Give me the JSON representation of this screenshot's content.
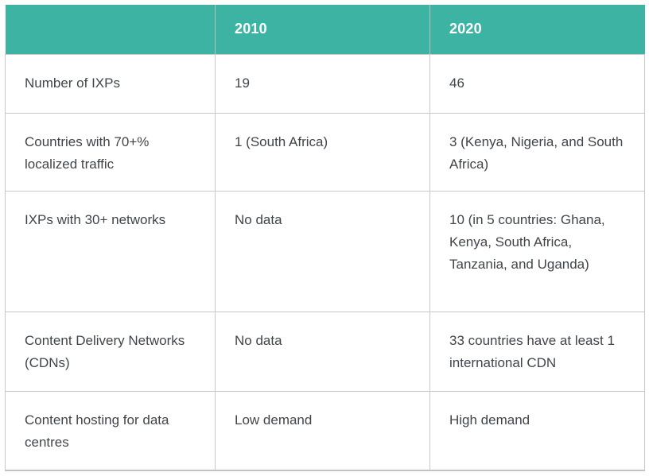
{
  "chart_data": {
    "type": "table",
    "title": "",
    "columns": [
      "",
      "2010",
      "2020"
    ],
    "rows": [
      {
        "label": "Number of IXPs",
        "y2010": "19",
        "y2020": "46"
      },
      {
        "label": "Countries with 70+% localized traffic",
        "y2010": "1 (South Africa)",
        "y2020": "3 (Kenya, Nigeria, and South Africa)"
      },
      {
        "label": "IXPs with 30+ networks",
        "y2010": "No data",
        "y2020": "10 (in 5 countries: Ghana, Kenya, South Africa, Tanzania, and Uganda)"
      },
      {
        "label": "Content Delivery Networks (CDNs)",
        "y2010": "No data",
        "y2020": "33 countries have at least 1 international CDN"
      },
      {
        "label": "Content hosting for data centres",
        "y2010": "Low demand",
        "y2020": "High demand"
      }
    ],
    "layout": {
      "header_position": "top",
      "grid": true,
      "body_text_align": "left",
      "cell_vertical_align": "top"
    },
    "colors": {
      "header_bg": "#3db3a3",
      "header_text": "#ffffff",
      "body_text": "#40454b",
      "border": "#c9c9c9"
    }
  }
}
